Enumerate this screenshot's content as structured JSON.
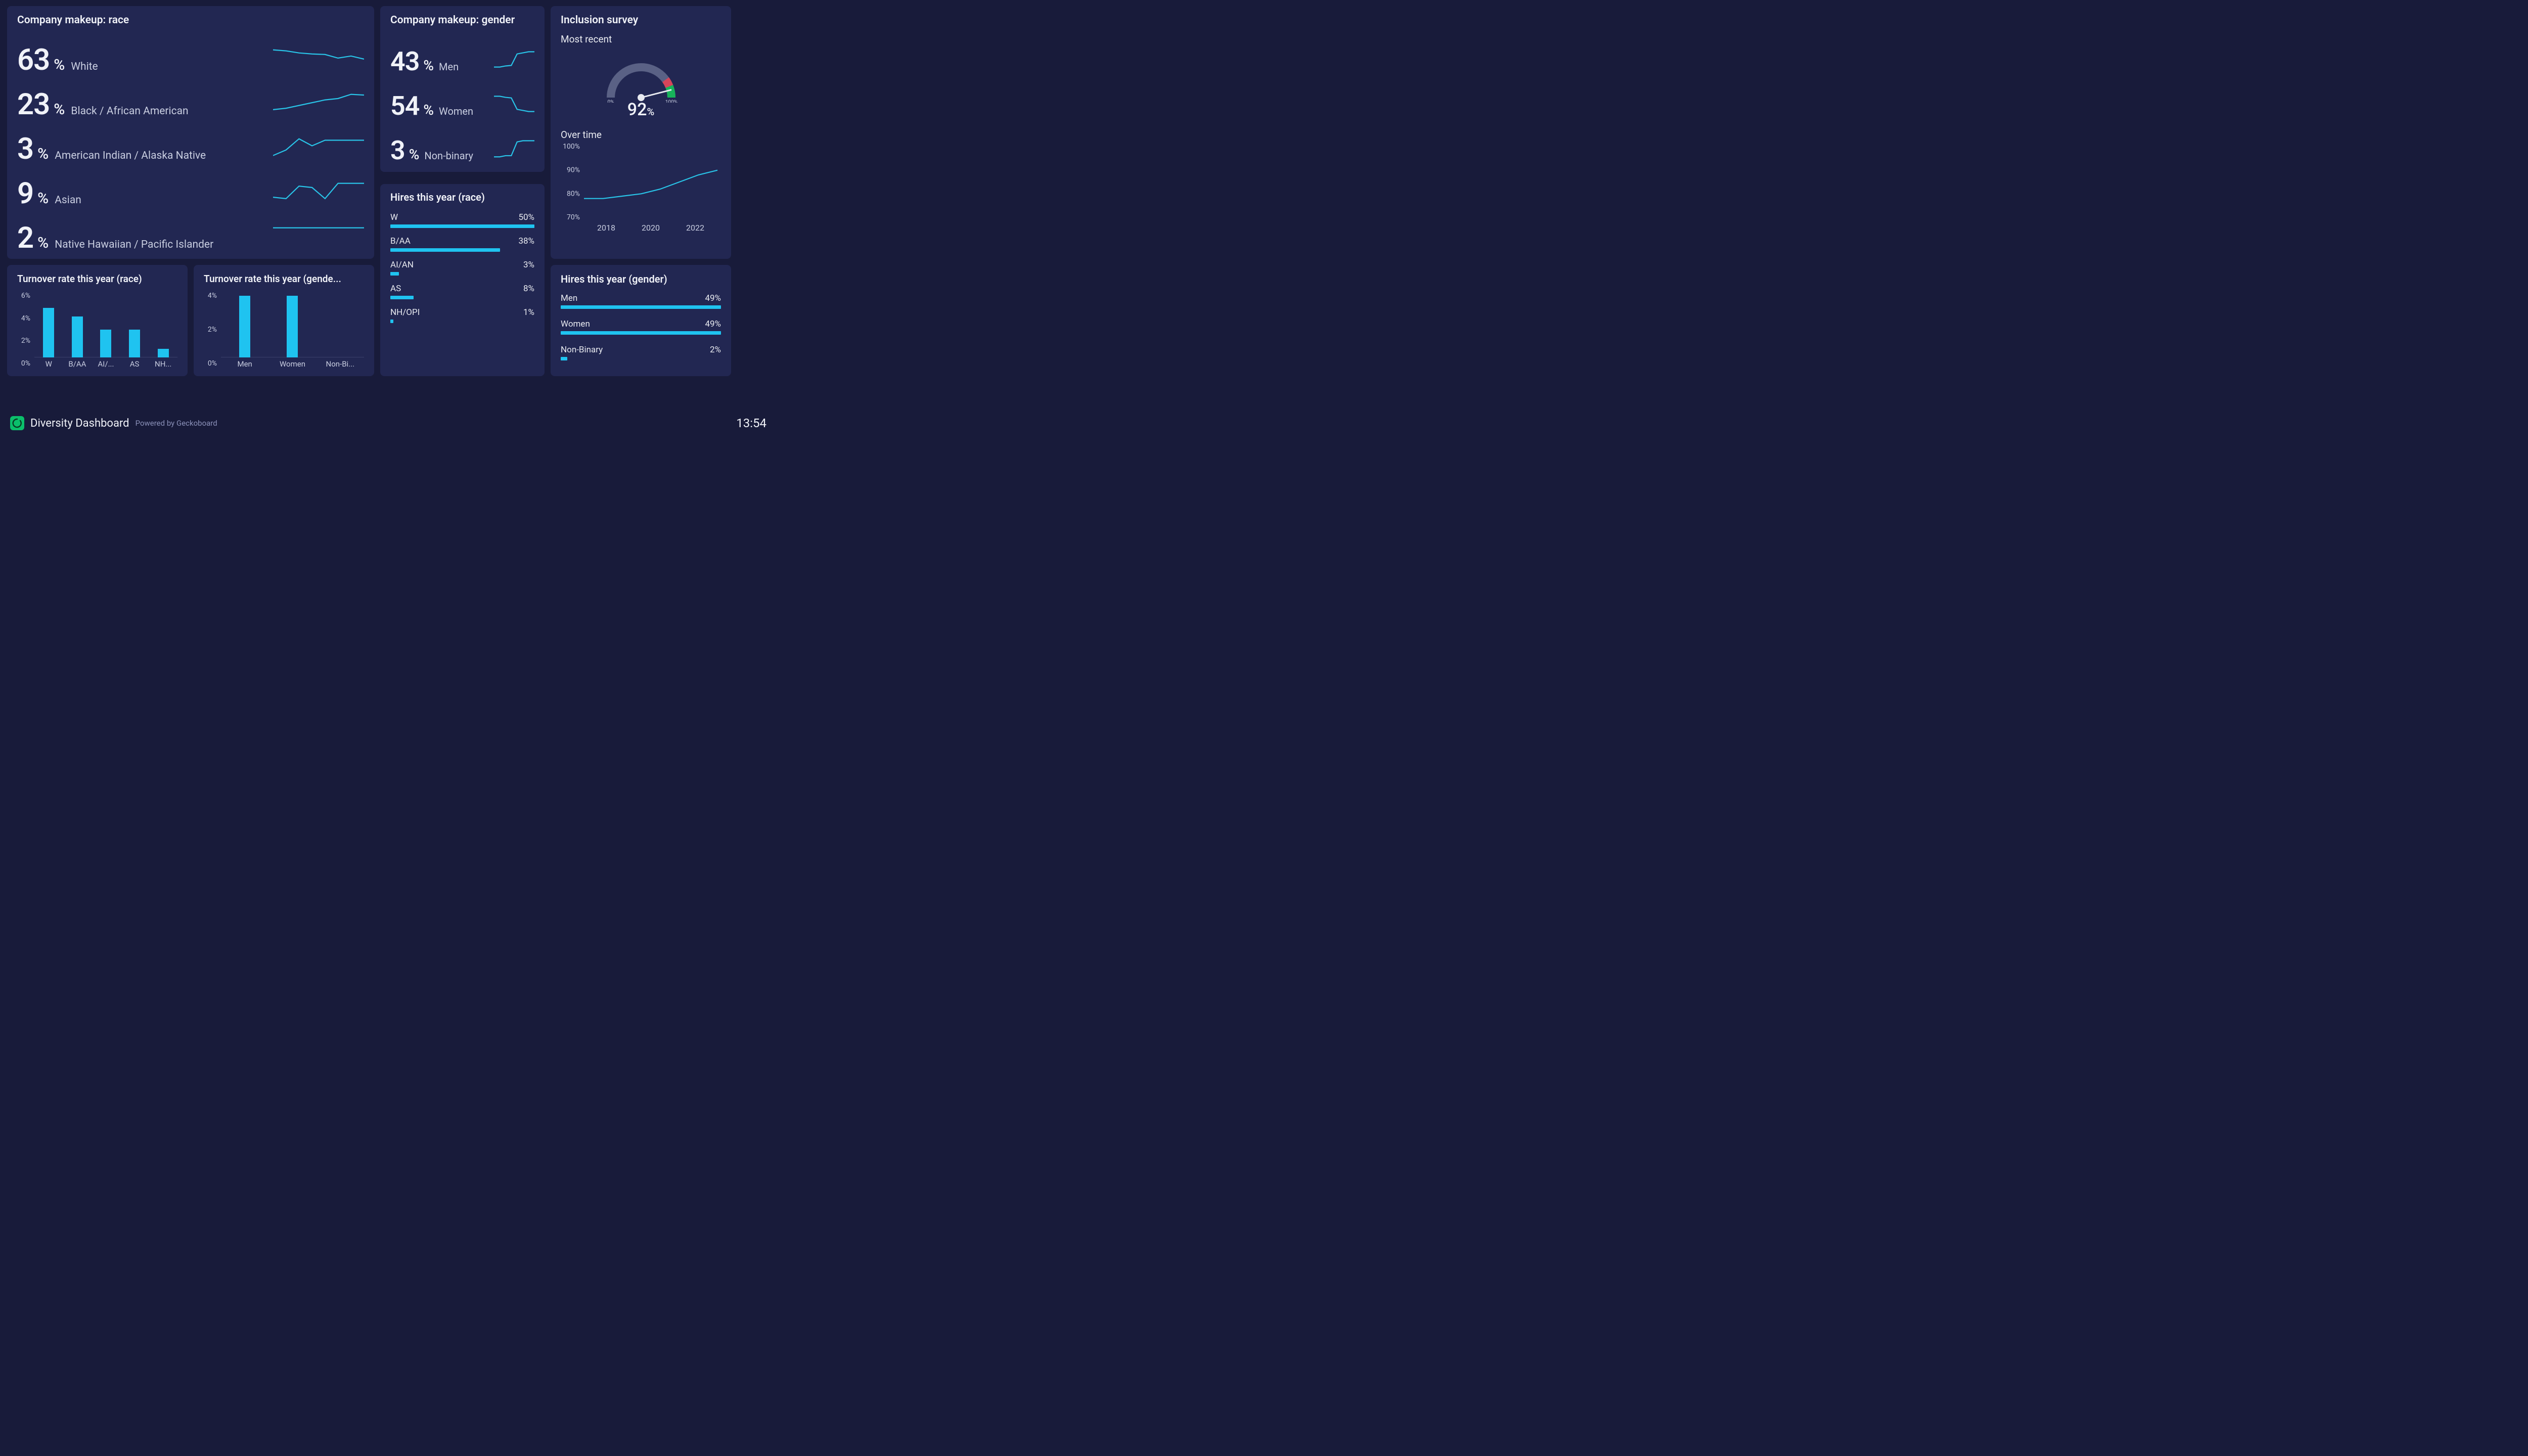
{
  "colors": {
    "page_bg": "#181b3a",
    "card_bg": "#222752",
    "text_primary": "#f0f2f8",
    "text_secondary": "#c8cde0",
    "accent": "#1fc3f0",
    "spark": "#29c4e8",
    "gauge_track": "#5a6185",
    "gauge_green": "#17b35a",
    "gauge_red": "#d6455a",
    "logo_bg": "#0bbf6b"
  },
  "race_makeup": {
    "title": "Company makeup: race",
    "items": [
      {
        "value": 63,
        "label": "White",
        "spark": [
          46,
          44,
          40,
          38,
          37,
          30,
          34,
          28
        ]
      },
      {
        "value": 23,
        "label": "Black / African American",
        "spark": [
          12,
          14,
          18,
          22,
          26,
          28,
          34,
          33
        ]
      },
      {
        "value": 3,
        "label": "American Indian / Alaska Native",
        "spark": [
          10,
          18,
          34,
          24,
          32,
          32,
          32,
          32
        ]
      },
      {
        "value": 9,
        "label": "Asian",
        "spark": [
          14,
          12,
          30,
          28,
          12,
          34,
          34,
          34
        ]
      },
      {
        "value": 2,
        "label": "Native Hawaiian / Pacific Islander",
        "spark": [
          6,
          6,
          6,
          6,
          6,
          6,
          6,
          6
        ]
      }
    ],
    "percent": "%"
  },
  "gender_makeup": {
    "title": "Company makeup: gender",
    "items": [
      {
        "value": 43,
        "label": "Men",
        "spark": [
          12,
          12,
          14,
          15,
          36,
          38,
          40,
          40
        ]
      },
      {
        "value": 54,
        "label": "Women",
        "spark": [
          40,
          40,
          38,
          37,
          16,
          14,
          12,
          12
        ]
      },
      {
        "value": 3,
        "label": "Non-binary",
        "spark": [
          10,
          10,
          12,
          12,
          36,
          38,
          38,
          38
        ]
      }
    ],
    "percent": "%"
  },
  "hires_race": {
    "title": "Hires this year (race)",
    "items": [
      {
        "label": "W",
        "value": 50
      },
      {
        "label": "B/AA",
        "value": 38
      },
      {
        "label": "AI/AN",
        "value": 3
      },
      {
        "label": "AS",
        "value": 8
      },
      {
        "label": "NH/OPI",
        "value": 1
      }
    ],
    "max": 50,
    "percent": "%"
  },
  "inclusion": {
    "title": "Inclusion survey",
    "recent_label": "Most recent",
    "gauge": {
      "value": 92,
      "min_label": "0",
      "max_label": "100",
      "tick_suffix": "%",
      "green_start": 88,
      "red_start": 80,
      "red_end": 88
    },
    "over_time": {
      "label": "Over time",
      "y_ticks": [
        "100%",
        "90%",
        "80%",
        "70%"
      ],
      "x_ticks": [
        "2018",
        "2020",
        "2022"
      ],
      "y_min": 70,
      "y_max": 100,
      "points": [
        78,
        78,
        79,
        80,
        82,
        85,
        88,
        90
      ]
    },
    "percent": "%"
  },
  "turnover_race": {
    "title": "Turnover rate this year (race)",
    "y_ticks": [
      "6%",
      "4%",
      "2%",
      "0%"
    ],
    "y_max": 6,
    "bars": [
      {
        "label": "W",
        "value": 4.6
      },
      {
        "label": "B/AA",
        "value": 3.8
      },
      {
        "label": "AI/...",
        "value": 2.6
      },
      {
        "label": "AS",
        "value": 2.6
      },
      {
        "label": "NH...",
        "value": 0.8
      }
    ]
  },
  "turnover_gender": {
    "title": "Turnover rate this year (gende...",
    "y_ticks": [
      "4%",
      "2%",
      "0%"
    ],
    "y_max": 4,
    "bars": [
      {
        "label": "Men",
        "value": 3.8
      },
      {
        "label": "Women",
        "value": 3.8
      },
      {
        "label": "Non-Bi...",
        "value": 0
      }
    ]
  },
  "hires_gender": {
    "title": "Hires this year (gender)",
    "items": [
      {
        "label": "Men",
        "value": 49
      },
      {
        "label": "Women",
        "value": 49
      },
      {
        "label": "Non-Binary",
        "value": 2
      }
    ],
    "max": 49,
    "percent": "%"
  },
  "footer": {
    "title": "Diversity Dashboard",
    "powered": "Powered by Geckoboard",
    "time": "13:54"
  }
}
